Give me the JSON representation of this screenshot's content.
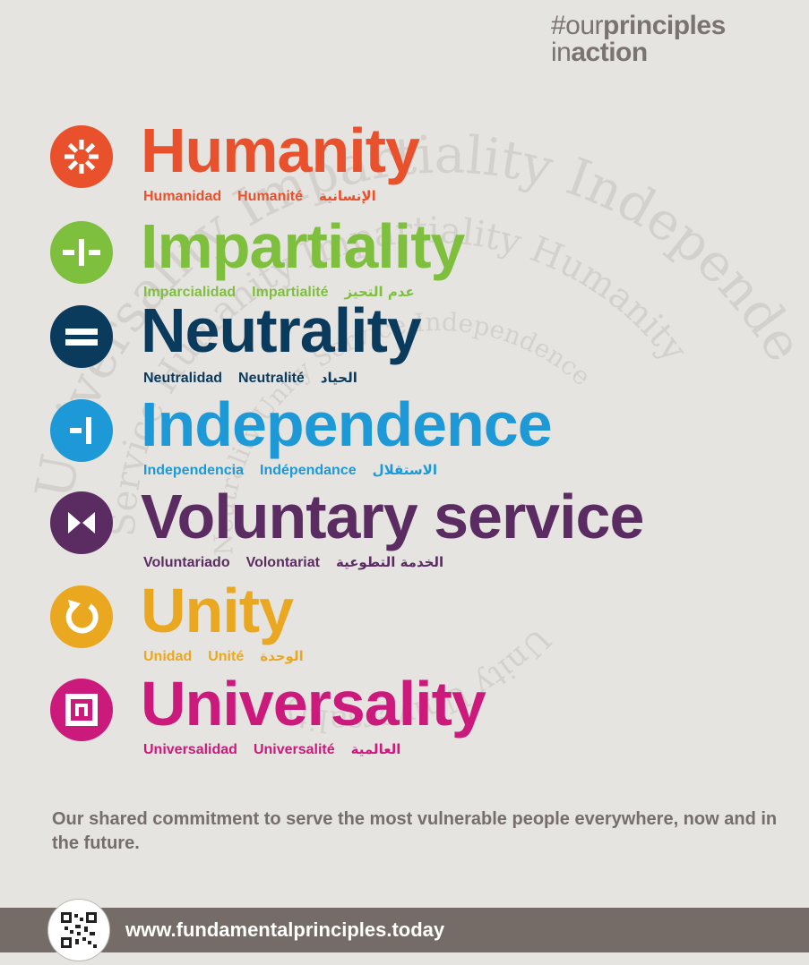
{
  "hashtag": {
    "prefix": "#our",
    "principles": "principles",
    "in": "in",
    "action": "action"
  },
  "principles": [
    {
      "title": "Humanity",
      "color": "#e8512b",
      "icon": "sun-icon",
      "translations": {
        "es": "Humanidad",
        "fr": "Humanité",
        "ar": "الإنسانية"
      }
    },
    {
      "title": "Impartiality",
      "color": "#7ebf3e",
      "icon": "impartiality-icon",
      "translations": {
        "es": "Imparcialidad",
        "fr": "Impartialité",
        "ar": "عدم التحيز"
      }
    },
    {
      "title": "Neutrality",
      "color": "#0a3a5c",
      "icon": "equals-icon",
      "translations": {
        "es": "Neutralidad",
        "fr": "Neutralité",
        "ar": "الحياد"
      }
    },
    {
      "title": "Independence",
      "color": "#1c99d6",
      "icon": "independence-icon",
      "translations": {
        "es": "Independencia",
        "fr": "Indépendance",
        "ar": "الاستقلال"
      }
    },
    {
      "title": "Voluntary service",
      "color": "#5a2c61",
      "icon": "bowtie-icon",
      "translations": {
        "es": "Voluntariado",
        "fr": "Volontariat",
        "ar": "الخدمة التطوعية"
      }
    },
    {
      "title": "Unity",
      "color": "#eaa821",
      "icon": "circular-arrow-icon",
      "translations": {
        "es": "Unidad",
        "fr": "Unité",
        "ar": "الوحدة"
      }
    },
    {
      "title": "Universality",
      "color": "#cc1a7c",
      "icon": "universality-icon",
      "translations": {
        "es": "Universalidad",
        "fr": "Universalité",
        "ar": "العالمية"
      }
    }
  ],
  "tagline": "Our shared commitment to serve the most vulnerable people everywhere, now and in the future.",
  "footer": {
    "url": "www.fundamentalprinciples.today",
    "qr": "qr-code-icon"
  },
  "colors": {
    "background": "#e6e4e1",
    "footer_bar": "#756c67",
    "text_gray": "#756e6a"
  }
}
